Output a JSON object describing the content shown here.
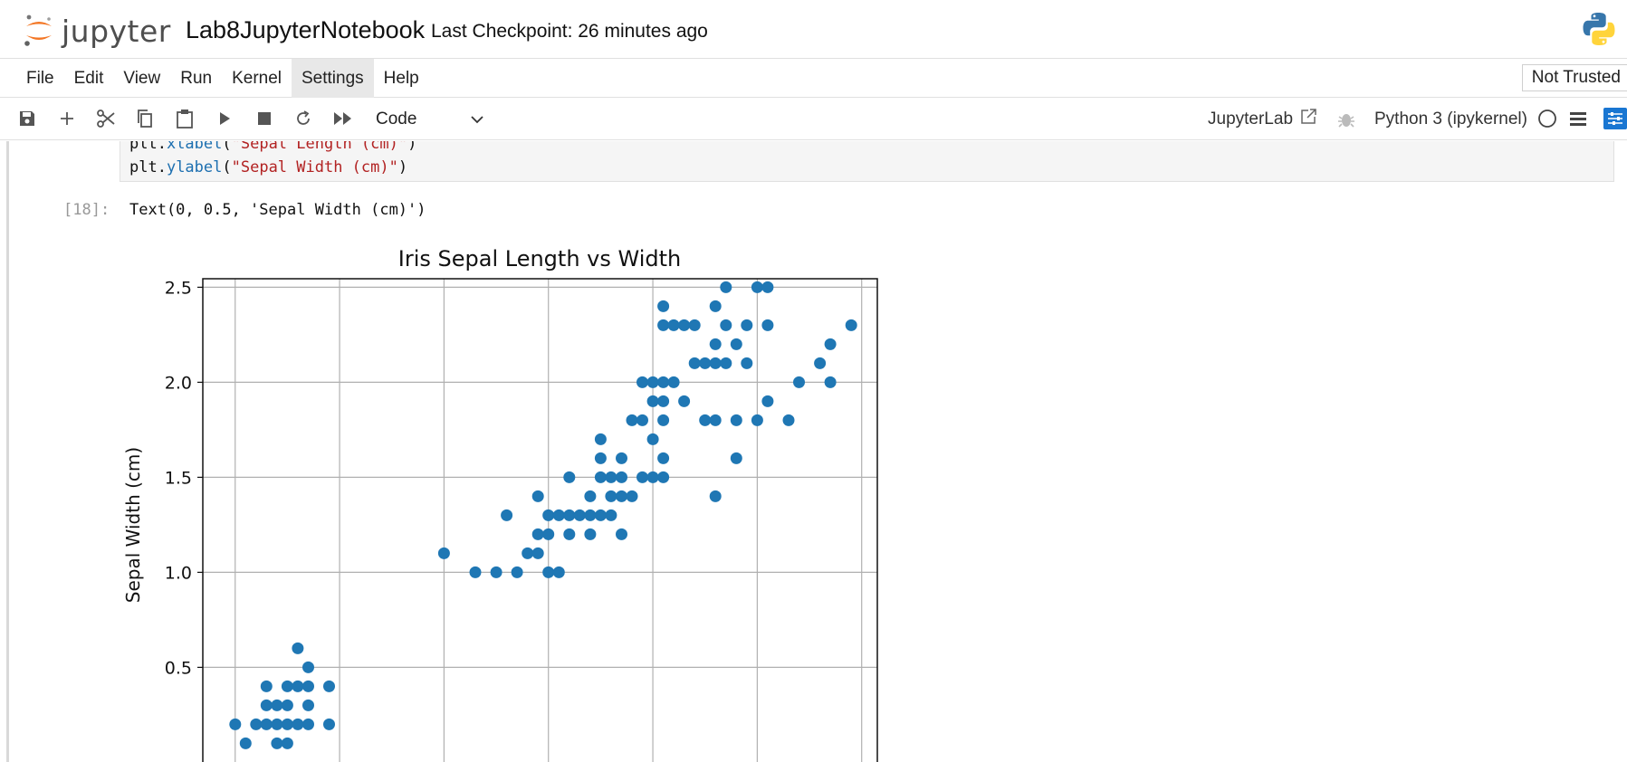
{
  "header": {
    "logo_text": "jupyter",
    "notebook_title": "Lab8JupyterNotebook",
    "checkpoint": "Last Checkpoint: 26 minutes ago"
  },
  "menu": {
    "items": [
      "File",
      "Edit",
      "View",
      "Run",
      "Kernel",
      "Settings",
      "Help"
    ],
    "trust_label": "Not Trusted"
  },
  "toolbar": {
    "cell_type": "Code",
    "jupyterlab_label": "JupyterLab",
    "kernel_name": "Python 3 (ipykernel)"
  },
  "cell": {
    "line1_obj": "plt.",
    "line1_func": "xlabel",
    "line1_arg": "\"Sepal Length (cm)\"",
    "line2_obj": "plt.",
    "line2_func": "ylabel",
    "line2_arg": "\"Sepal Width (cm)\"",
    "prompt": "[18]:",
    "output_text": "Text(0, 0.5, 'Sepal Width (cm)')"
  },
  "chart_data": {
    "type": "scatter",
    "title": "Iris Sepal Length vs Width",
    "xlabel": "",
    "ylabel": "Sepal Width (cm)",
    "ylim": [
      0.0,
      2.6
    ],
    "xlim": [
      0.69,
      7.15
    ],
    "yticks": [
      "0.5",
      "1.0",
      "1.5",
      "2.0",
      "2.5"
    ],
    "grid": true,
    "color": "#1f77b4",
    "points": [
      [
        1.0,
        0.2
      ],
      [
        1.1,
        0.1
      ],
      [
        1.2,
        0.2
      ],
      [
        1.3,
        0.2
      ],
      [
        1.3,
        0.4
      ],
      [
        1.3,
        0.3
      ],
      [
        1.4,
        0.2
      ],
      [
        1.4,
        0.3
      ],
      [
        1.4,
        0.1
      ],
      [
        1.5,
        0.2
      ],
      [
        1.5,
        0.4
      ],
      [
        1.5,
        0.3
      ],
      [
        1.5,
        0.1
      ],
      [
        1.6,
        0.2
      ],
      [
        1.6,
        0.4
      ],
      [
        1.6,
        0.6
      ],
      [
        1.7,
        0.2
      ],
      [
        1.7,
        0.3
      ],
      [
        1.7,
        0.5
      ],
      [
        1.7,
        0.4
      ],
      [
        1.9,
        0.2
      ],
      [
        1.9,
        0.4
      ],
      [
        3.0,
        1.1
      ],
      [
        3.3,
        1.0
      ],
      [
        3.5,
        1.0
      ],
      [
        3.6,
        1.3
      ],
      [
        3.7,
        1.0
      ],
      [
        3.8,
        1.1
      ],
      [
        3.9,
        1.1
      ],
      [
        3.9,
        1.2
      ],
      [
        3.9,
        1.4
      ],
      [
        4.0,
        1.0
      ],
      [
        4.0,
        1.2
      ],
      [
        4.0,
        1.3
      ],
      [
        4.1,
        1.0
      ],
      [
        4.1,
        1.3
      ],
      [
        4.2,
        1.2
      ],
      [
        4.2,
        1.3
      ],
      [
        4.2,
        1.5
      ],
      [
        4.3,
        1.3
      ],
      [
        4.4,
        1.2
      ],
      [
        4.4,
        1.3
      ],
      [
        4.4,
        1.4
      ],
      [
        4.5,
        1.3
      ],
      [
        4.5,
        1.5
      ],
      [
        4.5,
        1.6
      ],
      [
        4.5,
        1.7
      ],
      [
        4.6,
        1.3
      ],
      [
        4.6,
        1.4
      ],
      [
        4.6,
        1.5
      ],
      [
        4.7,
        1.2
      ],
      [
        4.7,
        1.4
      ],
      [
        4.7,
        1.5
      ],
      [
        4.7,
        1.6
      ],
      [
        4.8,
        1.4
      ],
      [
        4.8,
        1.8
      ],
      [
        4.9,
        1.5
      ],
      [
        4.9,
        1.8
      ],
      [
        4.9,
        2.0
      ],
      [
        5.0,
        1.5
      ],
      [
        5.0,
        1.7
      ],
      [
        5.0,
        1.9
      ],
      [
        5.0,
        2.0
      ],
      [
        5.1,
        1.5
      ],
      [
        5.1,
        1.6
      ],
      [
        5.1,
        1.8
      ],
      [
        5.1,
        1.9
      ],
      [
        5.1,
        2.0
      ],
      [
        5.1,
        2.3
      ],
      [
        5.1,
        2.4
      ],
      [
        5.2,
        2.0
      ],
      [
        5.2,
        2.3
      ],
      [
        5.3,
        1.9
      ],
      [
        5.3,
        2.3
      ],
      [
        5.4,
        2.1
      ],
      [
        5.4,
        2.3
      ],
      [
        5.5,
        1.8
      ],
      [
        5.5,
        2.1
      ],
      [
        5.6,
        1.4
      ],
      [
        5.6,
        1.8
      ],
      [
        5.6,
        2.1
      ],
      [
        5.6,
        2.2
      ],
      [
        5.6,
        2.4
      ],
      [
        5.7,
        2.1
      ],
      [
        5.7,
        2.3
      ],
      [
        5.7,
        2.5
      ],
      [
        5.8,
        1.6
      ],
      [
        5.8,
        1.8
      ],
      [
        5.8,
        2.2
      ],
      [
        5.9,
        2.1
      ],
      [
        5.9,
        2.3
      ],
      [
        6.0,
        1.8
      ],
      [
        6.0,
        2.5
      ],
      [
        6.1,
        1.9
      ],
      [
        6.1,
        2.3
      ],
      [
        6.1,
        2.5
      ],
      [
        6.3,
        1.8
      ],
      [
        6.4,
        2.0
      ],
      [
        6.6,
        2.1
      ],
      [
        6.7,
        2.0
      ],
      [
        6.7,
        2.2
      ],
      [
        6.9,
        2.3
      ]
    ]
  }
}
